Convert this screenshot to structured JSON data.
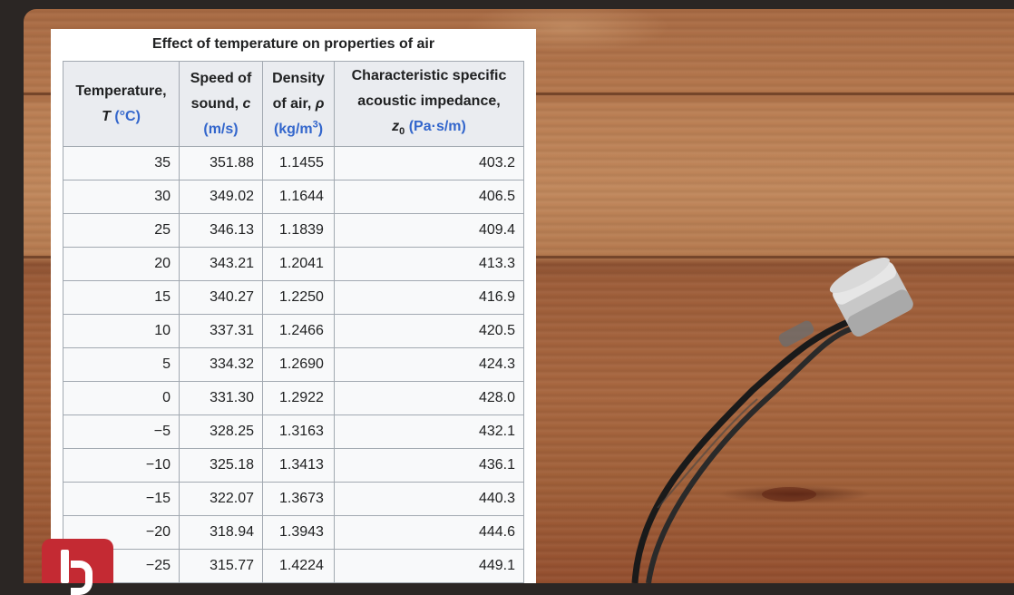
{
  "table": {
    "caption": "Effect of temperature on properties of air",
    "headers": [
      {
        "line1": "Temperature,",
        "var": "T",
        "unit": "(°C)"
      },
      {
        "line1": "Speed of",
        "line2": "sound,",
        "var": "c",
        "unit": "(m/s)"
      },
      {
        "line1": "Density",
        "line2": "of air,",
        "var": "ρ",
        "unit_a": "(kg/m",
        "unit_sup": "3",
        "unit_b": ")"
      },
      {
        "line1": "Characteristic specific",
        "line2": "acoustic impedance,",
        "var": "z",
        "var_sub": "0",
        "unit": "(Pa·s/m)"
      }
    ],
    "rows": [
      [
        "35",
        "351.88",
        "1.1455",
        "403.2"
      ],
      [
        "30",
        "349.02",
        "1.1644",
        "406.5"
      ],
      [
        "25",
        "346.13",
        "1.1839",
        "409.4"
      ],
      [
        "20",
        "343.21",
        "1.2041",
        "413.3"
      ],
      [
        "15",
        "340.27",
        "1.2250",
        "416.9"
      ],
      [
        "10",
        "337.31",
        "1.2466",
        "420.5"
      ],
      [
        "5",
        "334.32",
        "1.2690",
        "424.3"
      ],
      [
        "0",
        "331.30",
        "1.2922",
        "428.0"
      ],
      [
        "−5",
        "328.25",
        "1.3163",
        "432.1"
      ],
      [
        "−10",
        "325.18",
        "1.3413",
        "436.1"
      ],
      [
        "−15",
        "322.07",
        "1.3673",
        "440.3"
      ],
      [
        "−20",
        "318.94",
        "1.3943",
        "444.6"
      ],
      [
        "−25",
        "315.77",
        "1.4224",
        "449.1"
      ]
    ]
  },
  "colors": {
    "unit_link": "#3366cc",
    "logo": "#c42a33"
  },
  "icons": [
    "channel-logo-icon",
    "microphone-sensor"
  ]
}
